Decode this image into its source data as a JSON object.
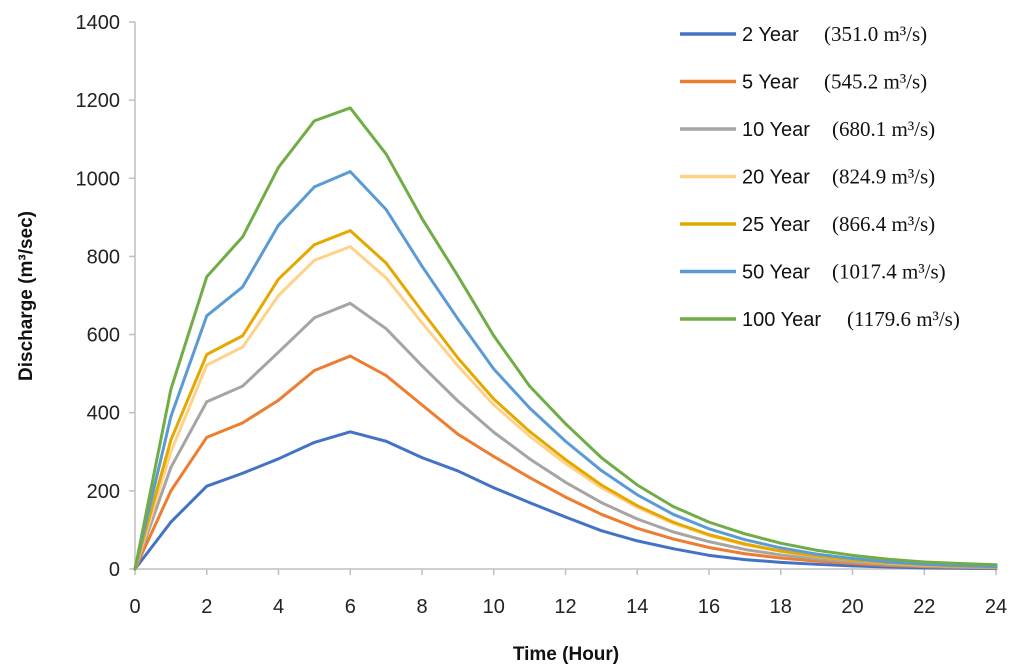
{
  "chart_data": {
    "type": "line",
    "title": "",
    "xlabel": "Time (Hour)",
    "ylabel": "Discharge (m³/sec)",
    "xlim": [
      0,
      24
    ],
    "ylim": [
      0,
      1400
    ],
    "xticks": [
      0,
      2,
      4,
      6,
      8,
      10,
      12,
      14,
      16,
      18,
      20,
      22,
      24
    ],
    "yticks": [
      0,
      200,
      400,
      600,
      800,
      1000,
      1200,
      1400
    ],
    "grid": false,
    "legend_position": "right",
    "x": [
      0,
      1,
      2,
      3,
      4,
      5,
      6,
      7,
      8,
      9,
      10,
      11,
      12,
      13,
      14,
      15,
      16,
      17,
      18,
      19,
      20,
      21,
      22,
      23,
      24
    ],
    "series": [
      {
        "name": "2 Year",
        "peak_label": "(351.0 m³/s)",
        "color": "#4472C4",
        "values": [
          0,
          120,
          212,
          245,
          282,
          324,
          351,
          327,
          285,
          251,
          208,
          170,
          133,
          98,
          72,
          52,
          35,
          24,
          17,
          12,
          8,
          5,
          3,
          2,
          1
        ]
      },
      {
        "name": "5 Year",
        "peak_label": "(545.2 m³/s)",
        "color": "#ED7D31",
        "values": [
          0,
          200,
          337,
          374,
          432,
          508,
          545,
          495,
          420,
          345,
          288,
          234,
          184,
          140,
          104,
          77,
          55,
          39,
          28,
          20,
          14,
          9,
          6,
          4,
          3
        ]
      },
      {
        "name": "10 Year",
        "peak_label": "(680.1 m³/s)",
        "color": "#A5A5A5",
        "values": [
          0,
          260,
          428,
          468,
          555,
          643,
          680,
          615,
          520,
          430,
          350,
          282,
          222,
          170,
          128,
          95,
          70,
          50,
          36,
          26,
          18,
          12,
          8,
          5,
          3
        ]
      },
      {
        "name": "20 Year",
        "peak_label": "(824.9 m³/s)",
        "color": "#FFD28A",
        "values": [
          0,
          300,
          522,
          568,
          700,
          790,
          825,
          745,
          630,
          520,
          420,
          340,
          270,
          208,
          158,
          117,
          86,
          62,
          45,
          32,
          23,
          15,
          10,
          7,
          5
        ]
      },
      {
        "name": "25 Year",
        "peak_label": "(866.4 m³/s)",
        "color": "#E5A800",
        "values": [
          0,
          330,
          549,
          597,
          742,
          830,
          866,
          783,
          660,
          540,
          435,
          352,
          280,
          215,
          162,
          120,
          88,
          64,
          46,
          33,
          23,
          16,
          11,
          7,
          5
        ]
      },
      {
        "name": "50 Year",
        "peak_label": "(1017.4 m³/s)",
        "color": "#5B9BD5",
        "values": [
          0,
          390,
          648,
          722,
          880,
          978,
          1017,
          920,
          775,
          640,
          512,
          412,
          327,
          252,
          190,
          140,
          103,
          75,
          54,
          38,
          27,
          18,
          12,
          9,
          6
        ]
      },
      {
        "name": "100 Year",
        "peak_label": "(1179.6 m³/s)",
        "color": "#70AD47",
        "values": [
          0,
          460,
          748,
          850,
          1028,
          1147,
          1180,
          1062,
          897,
          750,
          597,
          468,
          372,
          285,
          215,
          160,
          120,
          90,
          66,
          48,
          35,
          25,
          18,
          14,
          11
        ]
      }
    ]
  }
}
